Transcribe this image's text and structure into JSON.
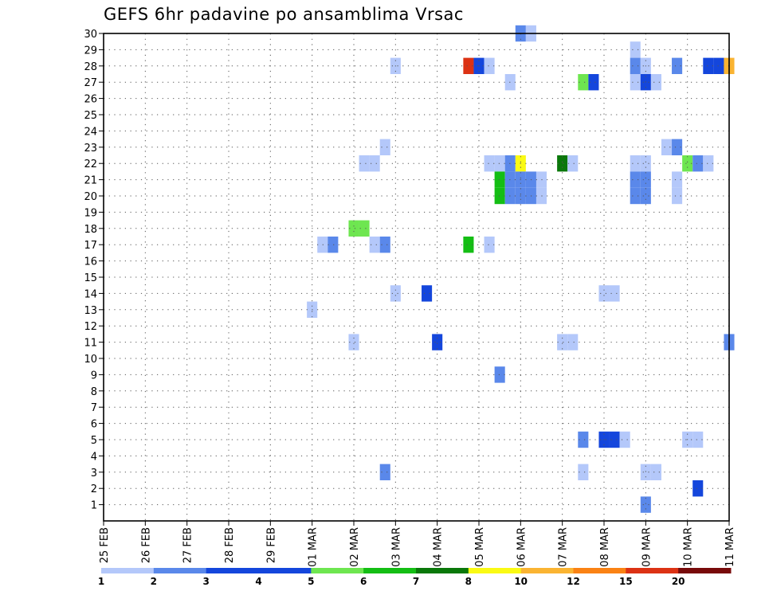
{
  "chart_data": {
    "type": "heatmap",
    "title": "GEFS 6hr padavine po ansamblima Vrsac",
    "xlabel": "",
    "ylabel": "",
    "x_tick_labels": [
      "25 FEB",
      "26 FEB",
      "27 FEB",
      "28 FEB",
      "29 FEB",
      "01 MAR",
      "02 MAR",
      "03 MAR",
      "04 MAR",
      "05 MAR",
      "06 MAR",
      "07 MAR",
      "08 MAR",
      "09 MAR",
      "10 MAR",
      "11 MAR"
    ],
    "y_tick_labels": [
      "1",
      "2",
      "3",
      "4",
      "5",
      "6",
      "7",
      "8",
      "9",
      "10",
      "11",
      "12",
      "13",
      "14",
      "15",
      "16",
      "17",
      "18",
      "19",
      "20",
      "21",
      "22",
      "23",
      "24",
      "25",
      "26",
      "27",
      "28",
      "29",
      "30"
    ],
    "xlim_days": [
      0,
      15
    ],
    "ylim": [
      0,
      30
    ],
    "grid": true,
    "step_hours": 6,
    "legend": {
      "placement": "bottom",
      "labels": [
        "1",
        "2",
        "3",
        "4",
        "5",
        "6",
        "7",
        "8",
        "10",
        "12",
        "15",
        "20"
      ],
      "colors": [
        "#b4c8fa",
        "#5a88ea",
        "#1446dc",
        "#1446dc",
        "#6ee650",
        "#14be14",
        "#0a780a",
        "#fafa14",
        "#fab432",
        "#fa8214",
        "#dc3214",
        "#780a0a"
      ]
    },
    "units": "mm",
    "cells": [
      {
        "m": 30,
        "d": 10.0,
        "v": 2
      },
      {
        "m": 30,
        "d": 10.25,
        "v": 1
      },
      {
        "m": 29,
        "d": 12.75,
        "v": 1
      },
      {
        "m": 28,
        "d": 7.0,
        "v": 1
      },
      {
        "m": 28,
        "d": 8.75,
        "v": 15
      },
      {
        "m": 28,
        "d": 9.0,
        "v": 3
      },
      {
        "m": 28,
        "d": 9.25,
        "v": 1
      },
      {
        "m": 28,
        "d": 12.75,
        "v": 2
      },
      {
        "m": 28,
        "d": 13.0,
        "v": 1
      },
      {
        "m": 28,
        "d": 13.75,
        "v": 2
      },
      {
        "m": 28,
        "d": 14.5,
        "v": 3
      },
      {
        "m": 28,
        "d": 14.75,
        "v": 3
      },
      {
        "m": 28,
        "d": 15.0,
        "v": 10
      },
      {
        "m": 27,
        "d": 9.75,
        "v": 1
      },
      {
        "m": 27,
        "d": 11.5,
        "v": 5
      },
      {
        "m": 27,
        "d": 11.75,
        "v": 3
      },
      {
        "m": 27,
        "d": 12.75,
        "v": 1
      },
      {
        "m": 27,
        "d": 13.0,
        "v": 3
      },
      {
        "m": 27,
        "d": 13.25,
        "v": 1
      },
      {
        "m": 23,
        "d": 6.75,
        "v": 1
      },
      {
        "m": 23,
        "d": 13.5,
        "v": 1
      },
      {
        "m": 23,
        "d": 13.75,
        "v": 2
      },
      {
        "m": 22,
        "d": 6.25,
        "v": 1
      },
      {
        "m": 22,
        "d": 6.5,
        "v": 1
      },
      {
        "m": 22,
        "d": 9.25,
        "v": 1
      },
      {
        "m": 22,
        "d": 9.5,
        "v": 1
      },
      {
        "m": 22,
        "d": 9.75,
        "v": 2
      },
      {
        "m": 22,
        "d": 10.0,
        "v": 8
      },
      {
        "m": 22,
        "d": 11.0,
        "v": 7
      },
      {
        "m": 22,
        "d": 11.25,
        "v": 1
      },
      {
        "m": 22,
        "d": 12.75,
        "v": 1
      },
      {
        "m": 22,
        "d": 13.0,
        "v": 1
      },
      {
        "m": 22,
        "d": 14.0,
        "v": 5
      },
      {
        "m": 22,
        "d": 14.25,
        "v": 2
      },
      {
        "m": 22,
        "d": 14.5,
        "v": 1
      },
      {
        "m": 21,
        "d": 9.5,
        "v": 6
      },
      {
        "m": 21,
        "d": 9.75,
        "v": 2
      },
      {
        "m": 21,
        "d": 10.0,
        "v": 2
      },
      {
        "m": 21,
        "d": 10.25,
        "v": 2
      },
      {
        "m": 21,
        "d": 10.5,
        "v": 1
      },
      {
        "m": 21,
        "d": 12.75,
        "v": 2
      },
      {
        "m": 21,
        "d": 13.0,
        "v": 2
      },
      {
        "m": 21,
        "d": 13.75,
        "v": 1
      },
      {
        "m": 20,
        "d": 9.5,
        "v": 6
      },
      {
        "m": 20,
        "d": 9.75,
        "v": 2
      },
      {
        "m": 20,
        "d": 10.0,
        "v": 2
      },
      {
        "m": 20,
        "d": 10.25,
        "v": 2
      },
      {
        "m": 20,
        "d": 10.5,
        "v": 1
      },
      {
        "m": 20,
        "d": 12.75,
        "v": 2
      },
      {
        "m": 20,
        "d": 13.0,
        "v": 2
      },
      {
        "m": 20,
        "d": 13.75,
        "v": 1
      },
      {
        "m": 18,
        "d": 6.0,
        "v": 5
      },
      {
        "m": 18,
        "d": 6.25,
        "v": 5
      },
      {
        "m": 17,
        "d": 5.25,
        "v": 1
      },
      {
        "m": 17,
        "d": 5.5,
        "v": 2
      },
      {
        "m": 17,
        "d": 6.5,
        "v": 1
      },
      {
        "m": 17,
        "d": 6.75,
        "v": 2
      },
      {
        "m": 17,
        "d": 8.75,
        "v": 6
      },
      {
        "m": 17,
        "d": 9.25,
        "v": 1
      },
      {
        "m": 14,
        "d": 7.0,
        "v": 1
      },
      {
        "m": 14,
        "d": 7.75,
        "v": 3
      },
      {
        "m": 14,
        "d": 12.0,
        "v": 1
      },
      {
        "m": 14,
        "d": 12.25,
        "v": 1
      },
      {
        "m": 13,
        "d": 5.0,
        "v": 1
      },
      {
        "m": 11,
        "d": 6.0,
        "v": 1
      },
      {
        "m": 11,
        "d": 8.0,
        "v": 3
      },
      {
        "m": 11,
        "d": 11.0,
        "v": 1
      },
      {
        "m": 11,
        "d": 11.25,
        "v": 1
      },
      {
        "m": 11,
        "d": 15.0,
        "v": 2
      },
      {
        "m": 9,
        "d": 9.5,
        "v": 2
      },
      {
        "m": 5,
        "d": 11.5,
        "v": 2
      },
      {
        "m": 5,
        "d": 12.0,
        "v": 3
      },
      {
        "m": 5,
        "d": 12.25,
        "v": 3
      },
      {
        "m": 5,
        "d": 12.5,
        "v": 1
      },
      {
        "m": 5,
        "d": 14.0,
        "v": 1
      },
      {
        "m": 5,
        "d": 14.25,
        "v": 1
      },
      {
        "m": 3,
        "d": 6.75,
        "v": 2
      },
      {
        "m": 3,
        "d": 11.5,
        "v": 1
      },
      {
        "m": 3,
        "d": 13.0,
        "v": 1
      },
      {
        "m": 3,
        "d": 13.25,
        "v": 1
      },
      {
        "m": 2,
        "d": 14.25,
        "v": 3
      },
      {
        "m": 1,
        "d": 13.0,
        "v": 2
      }
    ]
  }
}
